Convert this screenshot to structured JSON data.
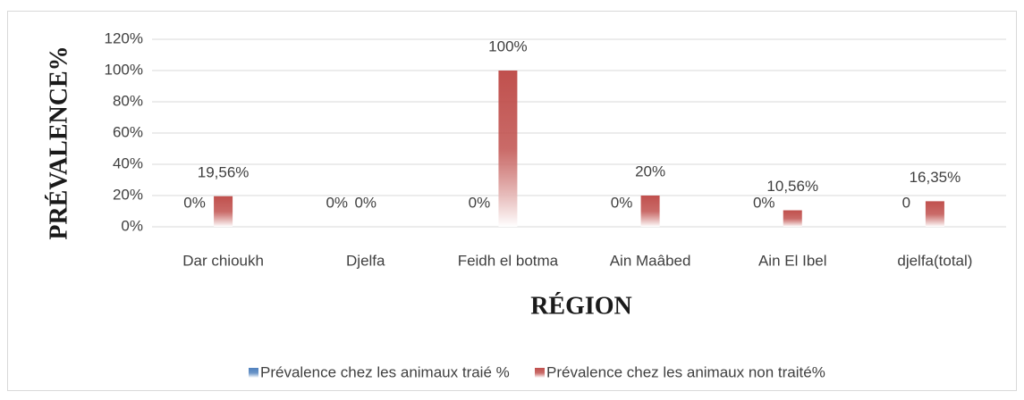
{
  "chart_data": {
    "type": "bar",
    "categories": [
      "Dar chioukh",
      "Djelfa",
      "Feidh el botma",
      "Ain Maâbed",
      "Ain El Ibel",
      "djelfa(total)"
    ],
    "series": [
      {
        "name": "Prévalence chez les animaux traié %",
        "color": "#4f81bd",
        "values": [
          0,
          0,
          0,
          0,
          0,
          0
        ],
        "value_labels": [
          "0%",
          "0%",
          "0%",
          "0%",
          "0%",
          "0"
        ]
      },
      {
        "name": "Prévalence chez les animaux non traité%",
        "color": "#c0504d",
        "values": [
          19.56,
          0,
          100,
          20,
          10.56,
          16.35
        ],
        "value_labels": [
          "19,56%",
          "0%",
          "100%",
          "20%",
          "10,56%",
          "16,35%"
        ]
      }
    ],
    "ylim": [
      0,
      120
    ],
    "yticks": [
      {
        "value": 0,
        "label": "0%"
      },
      {
        "value": 20,
        "label": "20%"
      },
      {
        "value": 40,
        "label": "40%"
      },
      {
        "value": 60,
        "label": "60%"
      },
      {
        "value": 80,
        "label": "80%"
      },
      {
        "value": 100,
        "label": "100%"
      },
      {
        "value": 120,
        "label": "120%"
      }
    ],
    "grid": true,
    "xlabel": "RÉGION",
    "ylabel": "PRÉVALENCE%",
    "legend": "bottom"
  }
}
